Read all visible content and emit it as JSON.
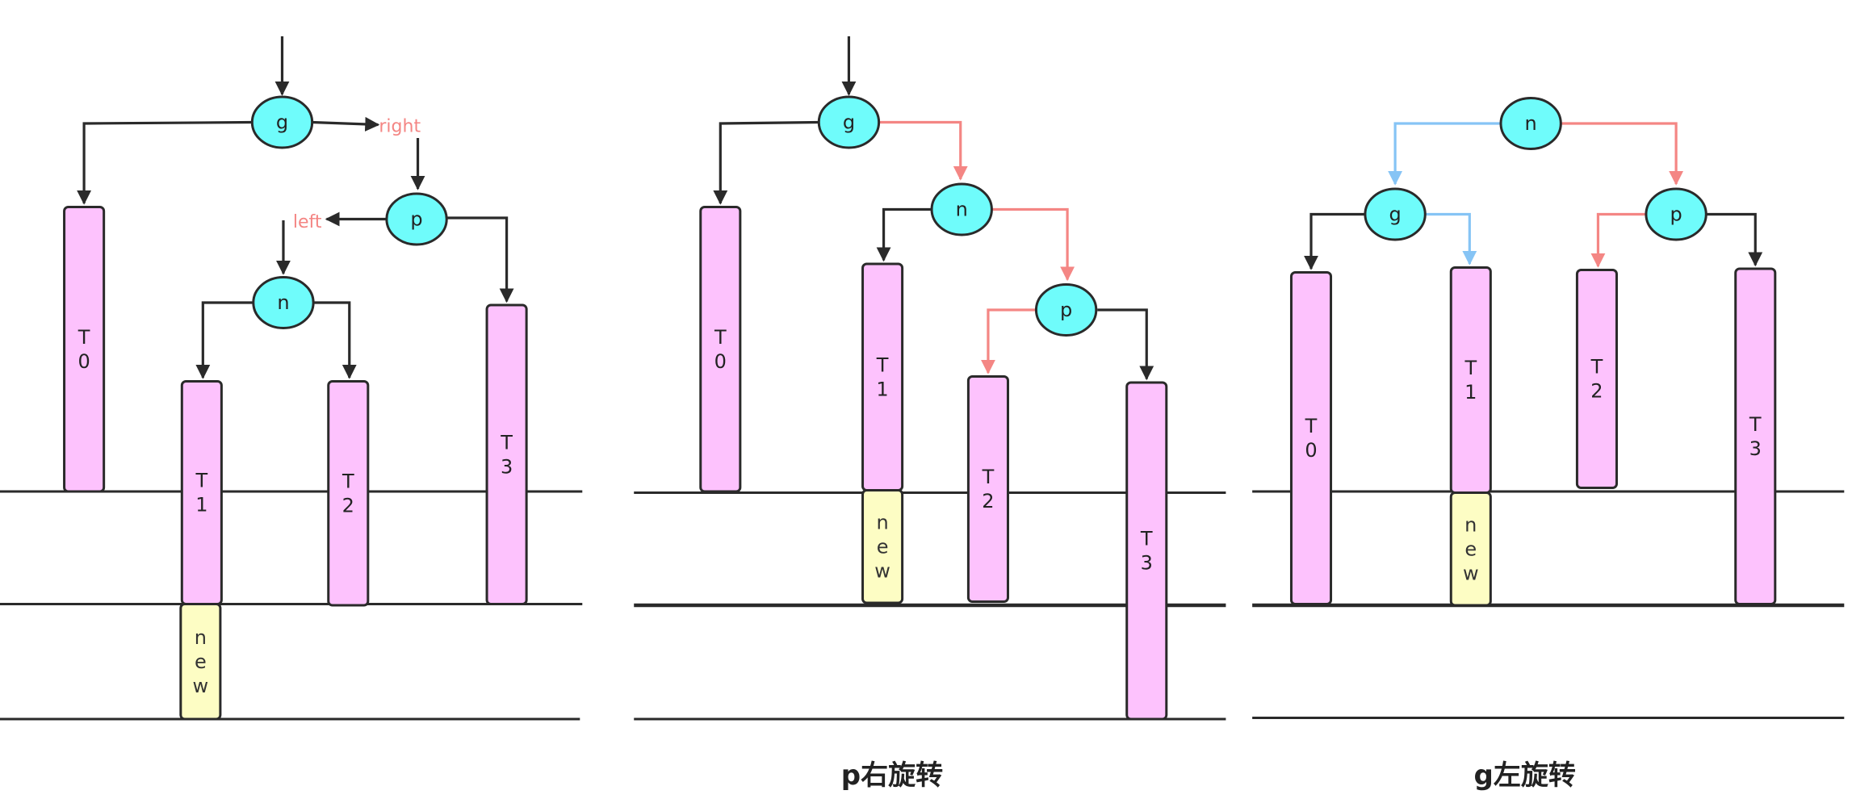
{
  "colors": {
    "node_fill": "#6ffcfb",
    "bar_fill": "#fdc2fd",
    "new_fill": "#fdfdc4",
    "stroke": "#2a2a2a",
    "red_edge": "#f48684",
    "blue_edge": "#86c4f5"
  },
  "panels": [
    {
      "caption": "",
      "nodes": [
        {
          "id": "g",
          "label": "g"
        },
        {
          "id": "p",
          "label": "p"
        },
        {
          "id": "n",
          "label": "n"
        }
      ],
      "bars": [
        {
          "id": "T0",
          "label": "T0"
        },
        {
          "id": "T1",
          "label": "T1"
        },
        {
          "id": "new",
          "label": "new"
        },
        {
          "id": "T2",
          "label": "T2"
        },
        {
          "id": "T3",
          "label": "T3"
        }
      ],
      "edge_labels": [
        {
          "id": "right",
          "text": "right"
        },
        {
          "id": "left",
          "text": "left"
        }
      ]
    },
    {
      "caption": "p右旋转",
      "nodes": [
        {
          "id": "g",
          "label": "g"
        },
        {
          "id": "n",
          "label": "n"
        },
        {
          "id": "p",
          "label": "p"
        }
      ],
      "bars": [
        {
          "id": "T0",
          "label": "T0"
        },
        {
          "id": "T1",
          "label": "T1"
        },
        {
          "id": "new",
          "label": "new"
        },
        {
          "id": "T2",
          "label": "T2"
        },
        {
          "id": "T3",
          "label": "T3"
        }
      ],
      "edge_labels": []
    },
    {
      "caption": "g左旋转",
      "nodes": [
        {
          "id": "n",
          "label": "n"
        },
        {
          "id": "g",
          "label": "g"
        },
        {
          "id": "p",
          "label": "p"
        }
      ],
      "bars": [
        {
          "id": "T0",
          "label": "T0"
        },
        {
          "id": "T1",
          "label": "T1"
        },
        {
          "id": "new",
          "label": "new"
        },
        {
          "id": "T2",
          "label": "T2"
        },
        {
          "id": "T3",
          "label": "T3"
        }
      ],
      "edge_labels": []
    }
  ]
}
